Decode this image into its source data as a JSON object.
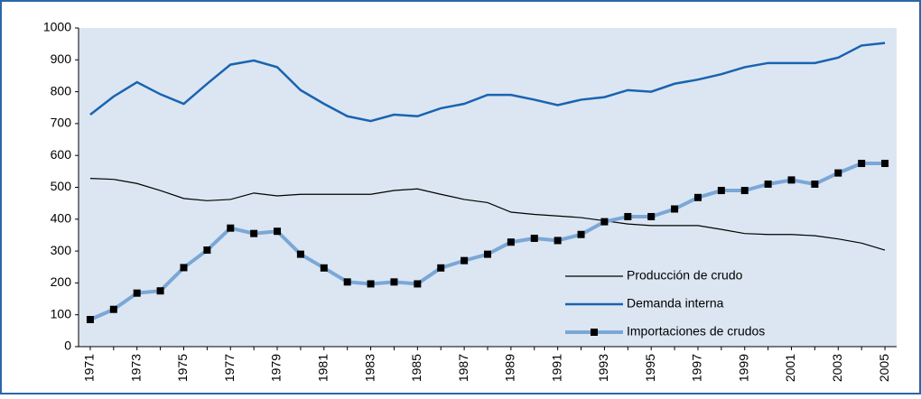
{
  "chart_data": {
    "type": "line",
    "categories": [
      "1971",
      null,
      "1973",
      null,
      "1975",
      null,
      "1977",
      null,
      "1979",
      null,
      "1981",
      null,
      "1983",
      null,
      "1985",
      null,
      "1987",
      null,
      "1989",
      null,
      "1991",
      null,
      "1993",
      null,
      "1995",
      null,
      "1997",
      null,
      "1999",
      null,
      "2001",
      null,
      "2003",
      null,
      "2005"
    ],
    "series": [
      {
        "name": "Producción de crudo",
        "color": "#000000",
        "values": [
          528,
          525,
          512,
          490,
          465,
          458,
          462,
          482,
          473,
          478,
          478,
          478,
          478,
          490,
          495,
          478,
          462,
          452,
          422,
          415,
          410,
          405,
          395,
          385,
          380,
          380,
          380,
          368,
          355,
          352,
          352,
          348,
          338,
          325,
          303
        ]
      },
      {
        "name": "Demanda interna",
        "color": "#1a63b0",
        "values": [
          728,
          785,
          830,
          792,
          762,
          825,
          885,
          898,
          877,
          805,
          762,
          723,
          708,
          728,
          723,
          748,
          762,
          790,
          790,
          775,
          758,
          775,
          783,
          805,
          800,
          825,
          838,
          855,
          877,
          890,
          890,
          890,
          907,
          945,
          953
        ]
      },
      {
        "name": "Importaciones de crudos",
        "color": "#7ba7d6",
        "marker": "square",
        "values": [
          85,
          117,
          168,
          175,
          248,
          303,
          372,
          355,
          362,
          290,
          247,
          203,
          197,
          203,
          197,
          247,
          270,
          290,
          328,
          340,
          333,
          352,
          392,
          408,
          408,
          432,
          468,
          490,
          490,
          510,
          523,
          510,
          545,
          575,
          575
        ]
      }
    ],
    "ylim": [
      0,
      1000
    ],
    "yticks": [
      0,
      100,
      200,
      300,
      400,
      500,
      600,
      700,
      800,
      900,
      1000
    ],
    "grid": false,
    "legend": "lower-right"
  }
}
